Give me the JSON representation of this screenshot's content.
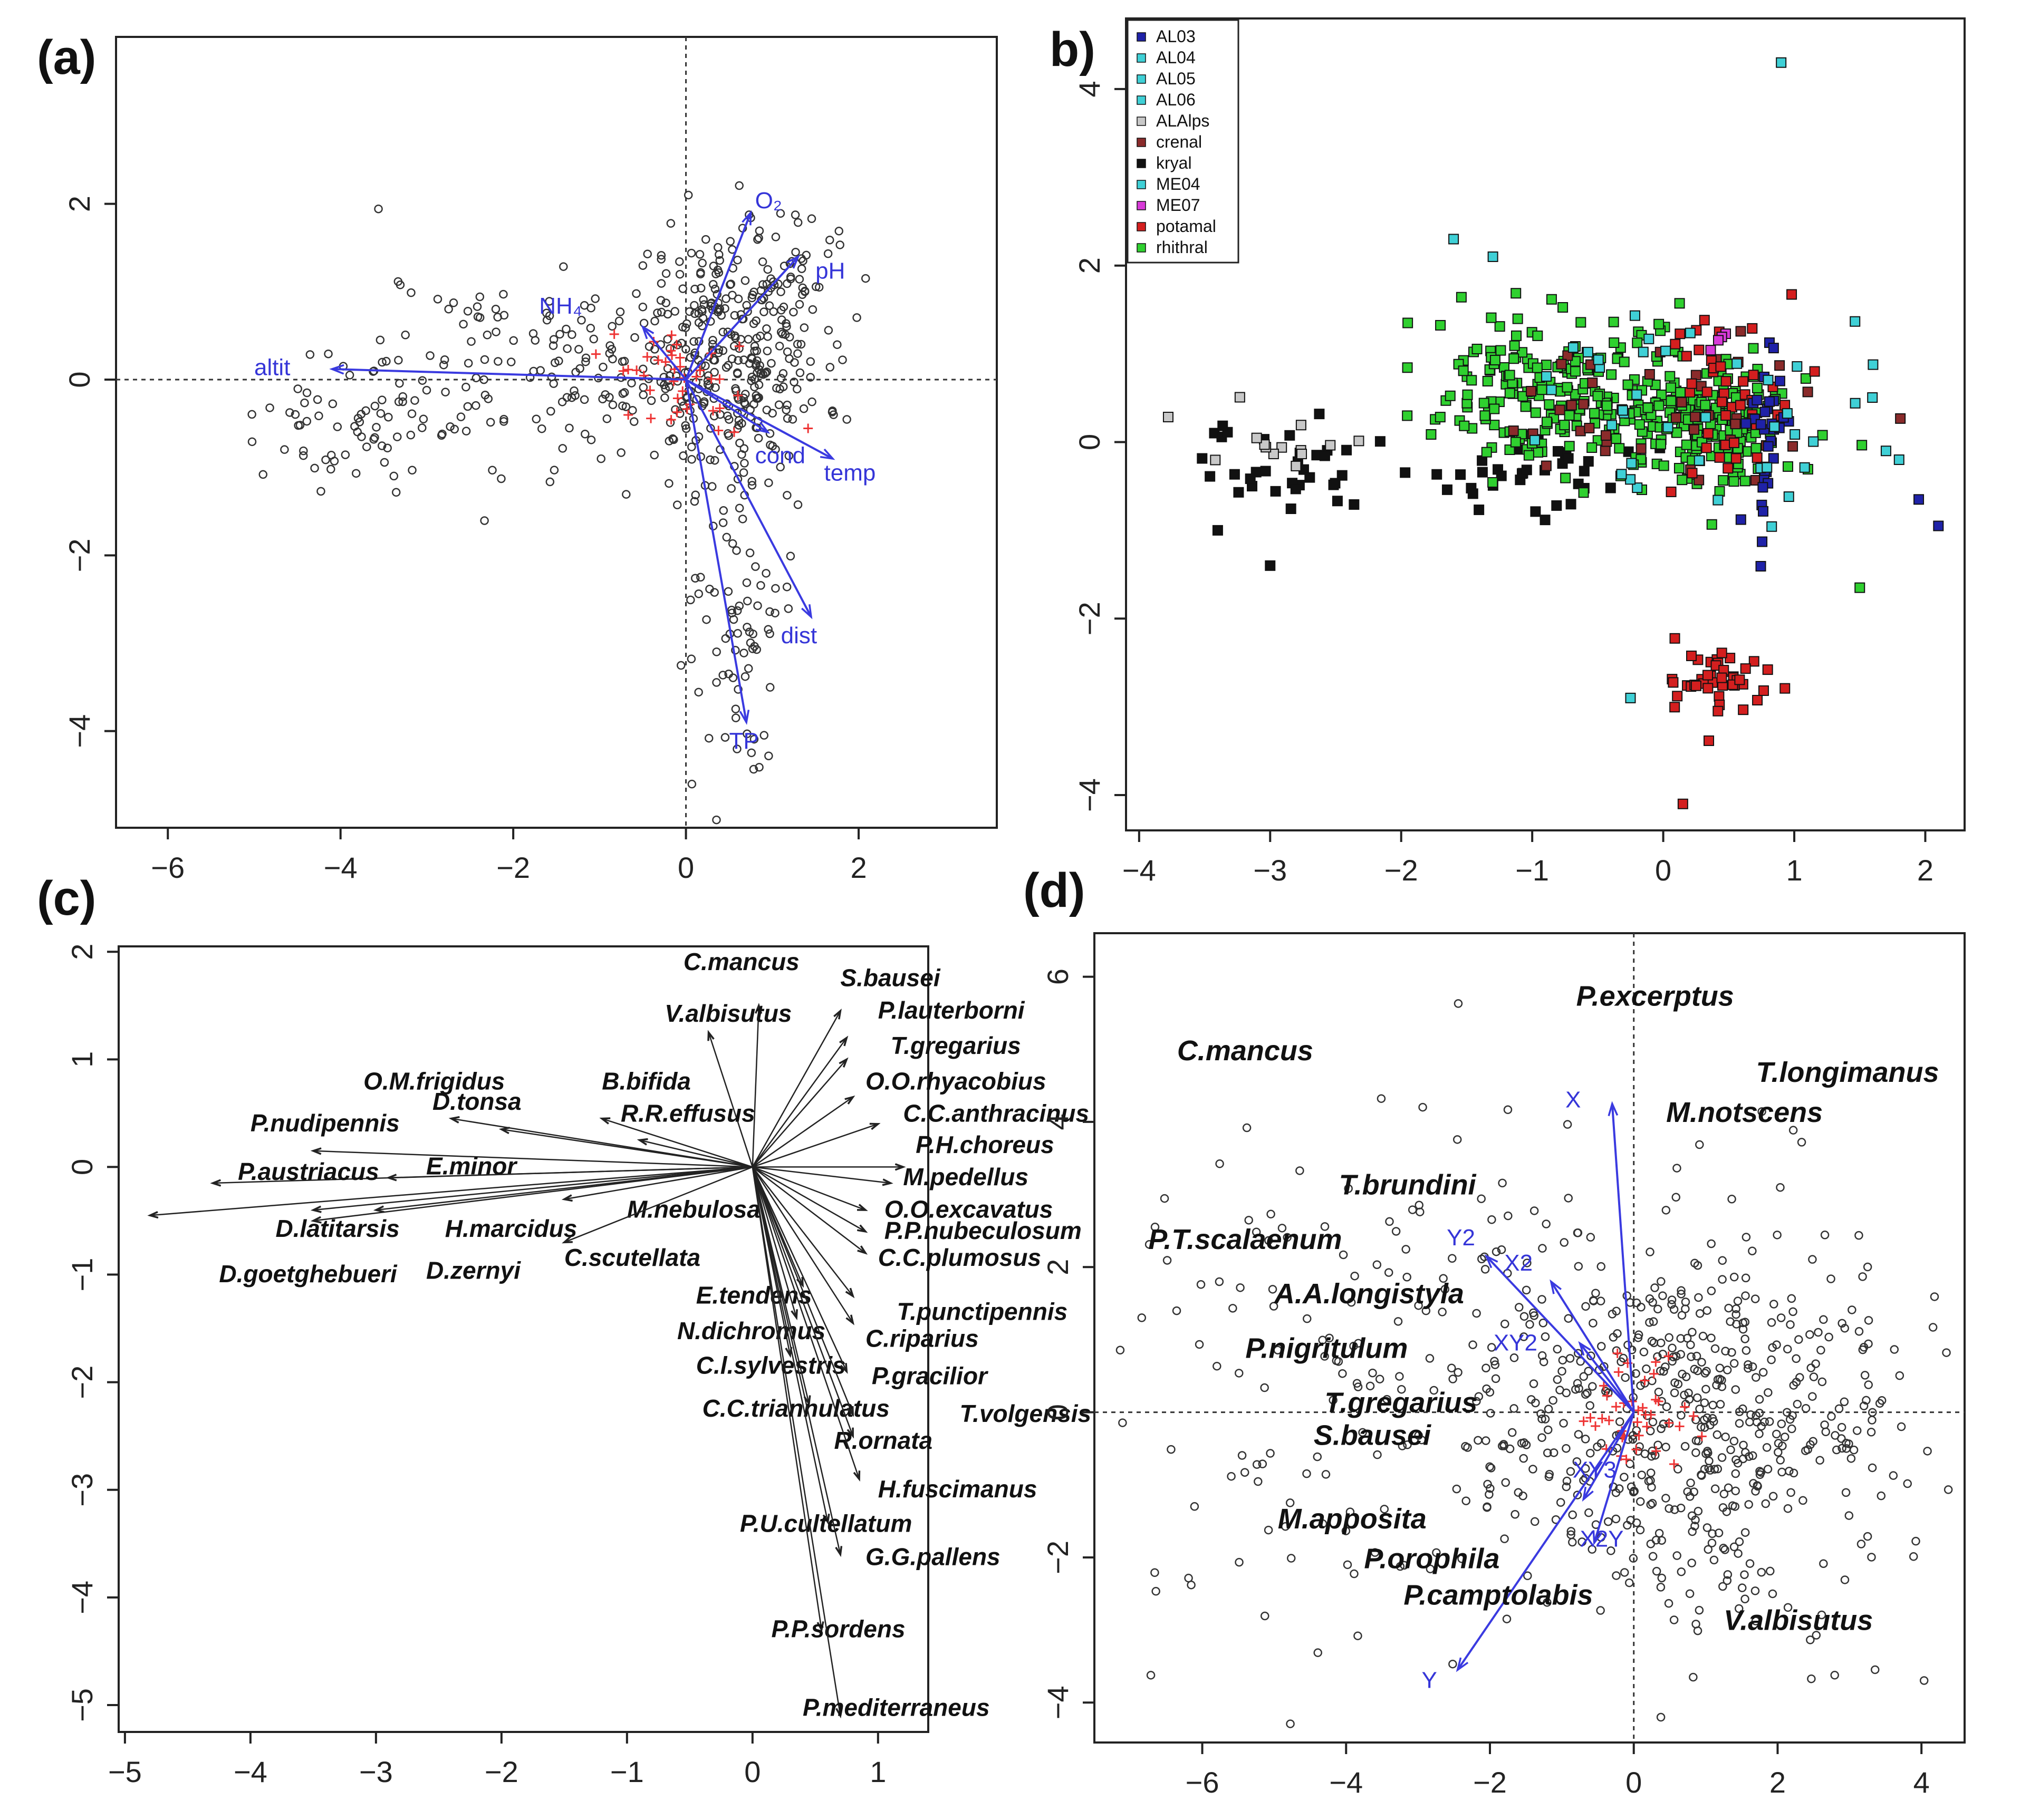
{
  "chart_data": [
    {
      "id": "a",
      "type": "scatter",
      "panel_label": "(a)",
      "xlim": [
        -6.6,
        3.6
      ],
      "ylim": [
        -5.1,
        3.9
      ],
      "xticks": [
        "−6",
        "−4",
        "−2",
        "0",
        "2"
      ],
      "xtick_values": [
        -6,
        -4,
        -2,
        0,
        2
      ],
      "yticks": [
        "−4",
        "−2",
        "0",
        "2"
      ],
      "ytick_values": [
        -4,
        -2,
        0,
        2
      ],
      "zero_lines": true,
      "point_count": 650,
      "point_clusters": [
        {
          "cx": 0.5,
          "cy": 0.3,
          "sx": 0.55,
          "sy": 0.7,
          "w": 0.45
        },
        {
          "cx": -1.6,
          "cy": 0.2,
          "sx": 1.1,
          "sy": 0.6,
          "w": 0.22
        },
        {
          "cx": 0.6,
          "cy": -2.3,
          "sx": 0.25,
          "sy": 1.3,
          "w": 0.15
        },
        {
          "cx": 1.0,
          "cy": 1.1,
          "sx": 0.35,
          "sy": 0.4,
          "w": 0.08
        },
        {
          "cx": -3.8,
          "cy": -0.5,
          "sx": 0.6,
          "sy": 0.35,
          "w": 0.1
        }
      ],
      "centroids_note": "red crosses near origin",
      "vectors": [
        {
          "label": "altit",
          "x": -4.1,
          "y": 0.12,
          "lx": -5.0,
          "ly": 0.05
        },
        {
          "label": "NH₄",
          "x": -0.5,
          "y": 0.6,
          "lx": -1.7,
          "ly": 0.75
        },
        {
          "label": "O₂",
          "x": 0.75,
          "y": 1.9,
          "lx": 0.8,
          "ly": 1.95
        },
        {
          "label": "pH",
          "x": 1.3,
          "y": 1.4,
          "lx": 1.5,
          "ly": 1.15
        },
        {
          "label": "cond",
          "x": 0.95,
          "y": -0.6,
          "lx": 0.8,
          "ly": -0.95
        },
        {
          "label": "temp",
          "x": 1.7,
          "y": -0.9,
          "lx": 1.6,
          "ly": -1.15
        },
        {
          "label": "dist",
          "x": 1.45,
          "y": -2.7,
          "lx": 1.1,
          "ly": -3.0
        },
        {
          "label": "TP",
          "x": 0.7,
          "y": -3.9,
          "lx": 0.5,
          "ly": -4.2
        }
      ]
    },
    {
      "id": "b",
      "type": "scatter",
      "panel_label": "b)",
      "xlim": [
        -4.1,
        2.3
      ],
      "ylim": [
        -4.4,
        4.8
      ],
      "xticks": [
        "−4",
        "−3",
        "−2",
        "−1",
        "0",
        "1",
        "2"
      ],
      "xtick_values": [
        -4,
        -3,
        -2,
        -1,
        0,
        1,
        2
      ],
      "yticks": [
        "−4",
        "−2",
        "0",
        "2",
        "4"
      ],
      "ytick_values": [
        -4,
        -2,
        0,
        2,
        4
      ],
      "legend": [
        {
          "label": "AL03",
          "color": "#1f22a8"
        },
        {
          "label": "AL04",
          "color": "#3fd0d6"
        },
        {
          "label": "AL05",
          "color": "#3fd0d6"
        },
        {
          "label": "AL06",
          "color": "#3fd0d6"
        },
        {
          "label": "ALAlps",
          "color": "#c8c8c8"
        },
        {
          "label": "crenal",
          "color": "#8a2b2b"
        },
        {
          "label": "kryal",
          "color": "#111111"
        },
        {
          "label": "ME04",
          "color": "#3fd0d6"
        },
        {
          "label": "ME07",
          "color": "#d83ad8"
        },
        {
          "label": "potamal",
          "color": "#d41f1f"
        },
        {
          "label": "rhithral",
          "color": "#2fd02f"
        }
      ],
      "groups": [
        {
          "label": "kryal",
          "color": "#111111",
          "n": 70,
          "clusters": [
            {
              "cx": -2.9,
              "cy": -0.25,
              "sx": 0.45,
              "sy": 0.28
            },
            {
              "cx": -0.9,
              "cy": -0.4,
              "sx": 0.5,
              "sy": 0.25
            }
          ]
        },
        {
          "label": "ALAlps",
          "color": "#c8c8c8",
          "n": 14,
          "clusters": [
            {
              "cx": -2.9,
              "cy": -0.05,
              "sx": 0.45,
              "sy": 0.25
            }
          ]
        },
        {
          "label": "rhithral",
          "color": "#2fd02f",
          "n": 380,
          "clusters": [
            {
              "cx": 0.3,
              "cy": 0.2,
              "sx": 0.35,
              "sy": 0.35
            },
            {
              "cx": -0.9,
              "cy": 0.6,
              "sx": 0.45,
              "sy": 0.45
            }
          ]
        },
        {
          "label": "crenal",
          "color": "#8a2b2b",
          "n": 40,
          "clusters": [
            {
              "cx": 0.0,
              "cy": 0.2,
              "sx": 0.6,
              "sy": 0.5
            }
          ]
        },
        {
          "label": "potamal",
          "color": "#d41f1f",
          "n": 90,
          "clusters": [
            {
              "cx": 0.45,
              "cy": -2.7,
              "sx": 0.2,
              "sy": 0.18
            },
            {
              "cx": 0.5,
              "cy": 0.4,
              "sx": 0.25,
              "sy": 0.45
            }
          ]
        },
        {
          "label": "AL03",
          "color": "#1f22a8",
          "n": 35,
          "clusters": [
            {
              "cx": 0.8,
              "cy": 0.1,
              "sx": 0.08,
              "sy": 0.5
            }
          ]
        },
        {
          "label": "AL04",
          "color": "#3fd0d6",
          "n": 40,
          "clusters": [
            {
              "cx": 0.2,
              "cy": 0.3,
              "sx": 0.7,
              "sy": 0.6
            }
          ]
        },
        {
          "label": "ME07",
          "color": "#d83ad8",
          "n": 4,
          "clusters": [
            {
              "cx": 0.4,
              "cy": 1.1,
              "sx": 0.1,
              "sy": 0.1
            }
          ]
        }
      ],
      "fixed_points": [
        {
          "x": 0.9,
          "y": 4.3,
          "color": "#3fd0d6"
        },
        {
          "x": -1.6,
          "y": 2.3,
          "color": "#3fd0d6"
        },
        {
          "x": -1.3,
          "y": 2.1,
          "color": "#3fd0d6"
        },
        {
          "x": 1.95,
          "y": -0.65,
          "color": "#1f22a8"
        },
        {
          "x": 2.1,
          "y": -0.95,
          "color": "#1f22a8"
        },
        {
          "x": 1.8,
          "y": -0.2,
          "color": "#3fd0d6"
        },
        {
          "x": 1.7,
          "y": -0.1,
          "color": "#3fd0d6"
        },
        {
          "x": 1.5,
          "y": -1.65,
          "color": "#2fd02f"
        },
        {
          "x": -1.95,
          "y": 1.35,
          "color": "#2fd02f"
        },
        {
          "x": 0.15,
          "y": -4.1,
          "color": "#d41f1f"
        },
        {
          "x": -3.0,
          "y": -1.4,
          "color": "#111111"
        },
        {
          "x": -3.4,
          "y": -1.0,
          "color": "#111111"
        },
        {
          "x": -0.25,
          "y": -2.9,
          "color": "#3fd0d6"
        }
      ]
    },
    {
      "id": "c",
      "type": "biplot",
      "panel_label": "(c)",
      "xlim": [
        -5.05,
        1.4
      ],
      "ylim": [
        -5.25,
        2.05
      ],
      "xticks": [
        "−5",
        "−4",
        "−3",
        "−2",
        "−1",
        "0",
        "1"
      ],
      "xtick_values": [
        -5,
        -4,
        -3,
        -2,
        -1,
        0,
        1
      ],
      "yticks": [
        "−5",
        "−4",
        "−3",
        "−2",
        "−1",
        "0",
        "1",
        "2"
      ],
      "ytick_values": [
        -5,
        -4,
        -3,
        -2,
        -1,
        0,
        1,
        2
      ],
      "species": [
        {
          "label": "C.mancus",
          "x": 0.05,
          "y": 1.5,
          "lx": -0.55,
          "ly": 1.83
        },
        {
          "label": "S.bausei",
          "x": 0.7,
          "y": 1.45,
          "lx": 0.7,
          "ly": 1.68
        },
        {
          "label": "V.albisutus",
          "x": -0.35,
          "y": 1.25,
          "lx": -0.7,
          "ly": 1.35
        },
        {
          "label": "P.lauterborni",
          "x": 0.75,
          "y": 1.2,
          "lx": 1.0,
          "ly": 1.38
        },
        {
          "label": "T.gregarius",
          "x": 0.75,
          "y": 1.0,
          "lx": 1.1,
          "ly": 1.05
        },
        {
          "label": "O.M.frigidus",
          "x": -2.4,
          "y": 0.45,
          "lx": -3.1,
          "ly": 0.72
        },
        {
          "label": "D.tonsa",
          "x": -2.0,
          "y": 0.35,
          "lx": -2.55,
          "ly": 0.53
        },
        {
          "label": "B.bifida",
          "x": -1.2,
          "y": 0.45,
          "lx": -1.2,
          "ly": 0.72
        },
        {
          "label": "O.O.rhyacobius",
          "x": 0.8,
          "y": 0.65,
          "lx": 0.9,
          "ly": 0.72
        },
        {
          "label": "R.R.effusus",
          "x": -0.9,
          "y": 0.25,
          "lx": -1.05,
          "ly": 0.42
        },
        {
          "label": "C.C.anthracinus",
          "x": 1.0,
          "y": 0.4,
          "lx": 1.2,
          "ly": 0.42
        },
        {
          "label": "P.nudipennis",
          "x": -3.5,
          "y": 0.15,
          "lx": -4.0,
          "ly": 0.33
        },
        {
          "label": "E.minor",
          "x": -2.9,
          "y": -0.1,
          "lx": -2.6,
          "ly": -0.07
        },
        {
          "label": "P.H.choreus",
          "x": 1.2,
          "y": 0.0,
          "lx": 1.3,
          "ly": 0.13
        },
        {
          "label": "P.austriacus",
          "x": -4.3,
          "y": -0.15,
          "lx": -4.1,
          "ly": -0.12
        },
        {
          "label": "M.pedellus",
          "x": 1.1,
          "y": -0.15,
          "lx": 1.2,
          "ly": -0.17
        },
        {
          "label": "M.nebulosa",
          "x": -1.5,
          "y": -0.3,
          "lx": -1.0,
          "ly": -0.47
        },
        {
          "label": "O.O.excavatus",
          "x": 0.9,
          "y": -0.4,
          "lx": 1.05,
          "ly": -0.47
        },
        {
          "label": "P.P.nubeculosum",
          "x": 0.9,
          "y": -0.6,
          "lx": 1.05,
          "ly": -0.67
        },
        {
          "label": "D.latitarsis",
          "x": -3.5,
          "y": -0.4,
          "lx": -3.8,
          "ly": -0.65
        },
        {
          "label": "H.marcidus",
          "x": -3.0,
          "y": -0.4,
          "lx": -2.45,
          "ly": -0.65
        },
        {
          "label": "C.scutellata",
          "x": -1.5,
          "y": -0.7,
          "lx": -1.5,
          "ly": -0.92
        },
        {
          "label": "C.C.plumosus",
          "x": 0.9,
          "y": -0.8,
          "lx": 1.0,
          "ly": -0.92
        },
        {
          "label": "D.goetghebueri",
          "x": -4.8,
          "y": -0.45,
          "lx": -4.25,
          "ly": -1.07
        },
        {
          "label": "D.zernyi",
          "x": -3.5,
          "y": -0.5,
          "lx": -2.6,
          "ly": -1.04
        },
        {
          "label": "E.tendens",
          "x": 0.4,
          "y": -1.1,
          "lx": -0.45,
          "ly": -1.27
        },
        {
          "label": "T.punctipennis",
          "x": 0.8,
          "y": -1.2,
          "lx": 1.15,
          "ly": -1.42
        },
        {
          "label": "N.dichromus",
          "x": 0.35,
          "y": -1.4,
          "lx": -0.6,
          "ly": -1.6
        },
        {
          "label": "C.riparius",
          "x": 0.8,
          "y": -1.45,
          "lx": 0.9,
          "ly": -1.67
        },
        {
          "label": "C.l.sylvestris",
          "x": 0.3,
          "y": -1.75,
          "lx": -0.45,
          "ly": -1.92
        },
        {
          "label": "P.gracilior",
          "x": 0.75,
          "y": -1.9,
          "lx": 0.95,
          "ly": -2.02
        },
        {
          "label": "C.C.triannulatus",
          "x": 0.45,
          "y": -2.2,
          "lx": -0.4,
          "ly": -2.32
        },
        {
          "label": "T.volgensis",
          "x": 0.8,
          "y": -2.3,
          "lx": 1.65,
          "ly": -2.37
        },
        {
          "label": "R.ornata",
          "x": 0.8,
          "y": -2.5,
          "lx": 0.65,
          "ly": -2.62
        },
        {
          "label": "H.fuscimanus",
          "x": 0.85,
          "y": -2.9,
          "lx": 1.0,
          "ly": -3.07
        },
        {
          "label": "P.U.cultellatum",
          "x": 0.6,
          "y": -3.3,
          "lx": -0.1,
          "ly": -3.39
        },
        {
          "label": "G.G.pallens",
          "x": 0.7,
          "y": -3.6,
          "lx": 0.9,
          "ly": -3.7
        },
        {
          "label": "P.P.sordens",
          "x": 0.55,
          "y": -4.3,
          "lx": 0.15,
          "ly": -4.37
        },
        {
          "label": "P.mediterraneus",
          "x": 0.7,
          "y": -5.1,
          "lx": 0.4,
          "ly": -5.1
        }
      ]
    },
    {
      "id": "d",
      "type": "biplot",
      "panel_label": "(d)",
      "xlim": [
        -7.5,
        4.6
      ],
      "ylim": [
        -4.55,
        6.6
      ],
      "xticks": [
        "−6",
        "−4",
        "−2",
        "0",
        "2",
        "4"
      ],
      "xtick_values": [
        -6,
        -4,
        -2,
        0,
        2,
        4
      ],
      "yticks": [
        "−4",
        "−2",
        "0",
        "2",
        "4",
        "6"
      ],
      "ytick_values": [
        -4,
        -2,
        0,
        2,
        4,
        6
      ],
      "zero_lines": true,
      "point_count": 720,
      "point_clusters": [
        {
          "cx": 1.2,
          "cy": -0.3,
          "sx": 1.2,
          "sy": 1.3,
          "w": 0.55
        },
        {
          "cx": -0.8,
          "cy": 0.5,
          "sx": 1.3,
          "sy": 1.5,
          "w": 0.3
        },
        {
          "cx": -4.5,
          "cy": 0.5,
          "sx": 1.5,
          "sy": 2.0,
          "w": 0.15
        }
      ],
      "vectors": [
        {
          "label": "X",
          "x": -0.3,
          "y": 4.25,
          "lx": -0.95,
          "ly": 4.2
        },
        {
          "label": "Y2",
          "x": -2.05,
          "y": 2.15,
          "lx": -2.6,
          "ly": 2.3
        },
        {
          "label": "X2",
          "x": -1.15,
          "y": 1.8,
          "lx": -1.8,
          "ly": 1.95
        },
        {
          "label": "XY2",
          "x": -0.75,
          "y": 0.95,
          "lx": -1.95,
          "ly": 0.85
        },
        {
          "label": "XY3",
          "x": -0.7,
          "y": -1.2,
          "lx": -0.85,
          "ly": -0.9
        },
        {
          "label": "X2Y",
          "x": -0.55,
          "y": -1.8,
          "lx": -0.75,
          "ly": -1.85
        },
        {
          "label": "Y",
          "x": -2.45,
          "y": -3.55,
          "lx": -2.95,
          "ly": -3.8
        }
      ],
      "species": [
        {
          "label": "P.excerptus",
          "lx": -0.8,
          "ly": 5.6
        },
        {
          "label": "C.mancus",
          "lx": -6.35,
          "ly": 4.85
        },
        {
          "label": "T.longimanus",
          "lx": 1.7,
          "ly": 4.55
        },
        {
          "label": "M.notscens",
          "lx": 0.45,
          "ly": 4.0
        },
        {
          "label": "T.brundini",
          "lx": -4.1,
          "ly": 3.0
        },
        {
          "label": "P.T.scalaenum",
          "lx": -6.75,
          "ly": 2.25
        },
        {
          "label": "A.A.longistyla",
          "lx": -5.0,
          "ly": 1.5
        },
        {
          "label": "P.nigritulum",
          "lx": -5.4,
          "ly": 0.75
        },
        {
          "label": "T.gregarius",
          "lx": -4.3,
          "ly": 0.0
        },
        {
          "label": "S.bausei",
          "lx": -4.45,
          "ly": -0.45
        },
        {
          "label": "M.apposita",
          "lx": -4.95,
          "ly": -1.6
        },
        {
          "label": "P.orophila",
          "lx": -3.75,
          "ly": -2.15
        },
        {
          "label": "P.camptolabis",
          "lx": -3.2,
          "ly": -2.65
        },
        {
          "label": "V.albisutus",
          "lx": 1.25,
          "ly": -3.0
        }
      ]
    }
  ]
}
